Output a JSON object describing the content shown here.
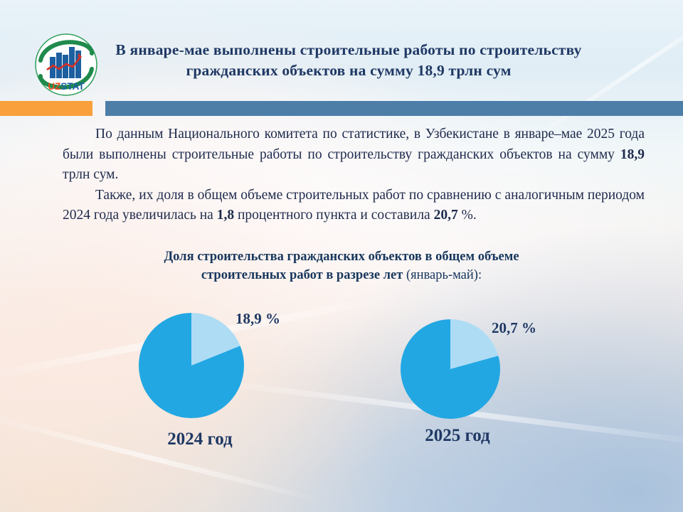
{
  "header": {
    "title": "В январе-мае выполнены строительные работы по строительству гражданских объектов на сумму 18,9 трлн сум",
    "logo": {
      "uz": "UZ",
      "stat": "STAT"
    }
  },
  "body": {
    "paragraphs": [
      {
        "segments": [
          {
            "t": "По данным Национального комитета по статистике, в Узбекистане в январе–мае 2025 года были выполнены строительные работы по строительству гражданских объектов на сумму "
          },
          {
            "t": "18,9",
            "b": true
          },
          {
            "t": " трлн сум."
          }
        ]
      },
      {
        "segments": [
          {
            "t": "Также, их доля в общем объеме строительных работ по сравнению с аналогичным периодом 2024 года увеличилась на "
          },
          {
            "t": "1,8",
            "b": true
          },
          {
            "t": " процентного пункта и составила "
          },
          {
            "t": "20,7",
            "b": true
          },
          {
            "t": " %."
          }
        ]
      }
    ]
  },
  "chart_heading": {
    "line1": "Доля строительства  гражданских объектов в общем объеме",
    "line2_bold": "строительных работ в разрезе лет ",
    "line2_normal": "(январь-май):"
  },
  "chart_data": [
    {
      "type": "pie",
      "title": "2024 год",
      "values": [
        18.9,
        81.1
      ],
      "value_label": "18,9 %",
      "year_label": "2024 год",
      "colors": [
        "#aedcf5",
        "#22a7e3"
      ],
      "start_angle_deg": 0,
      "direction": "clockwise",
      "legend": "none"
    },
    {
      "type": "pie",
      "title": "2025 год",
      "values": [
        20.7,
        79.3
      ],
      "value_label": "20,7 %",
      "year_label": "2025 год",
      "colors": [
        "#aedcf5",
        "#22a7e3"
      ],
      "start_angle_deg": 0,
      "direction": "clockwise",
      "legend": "none"
    }
  ],
  "colors": {
    "title_text": "#1f3864",
    "body_text": "#1e2a4c",
    "accent_orange_bar": "#f9a03c",
    "accent_blue_bar": "#4d7ea8",
    "pie_main": "#22a7e3",
    "pie_light": "#aedcf5"
  }
}
